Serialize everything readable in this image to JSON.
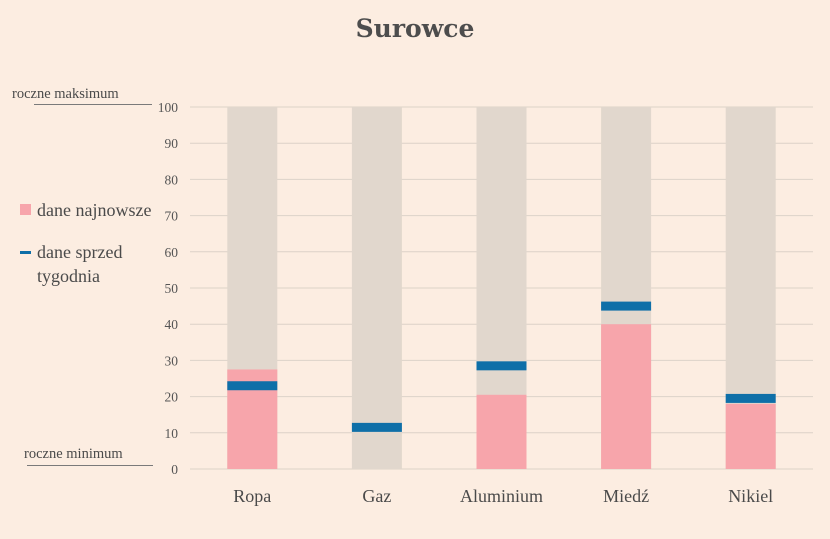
{
  "chart_data": {
    "type": "bar",
    "title": "Surowce",
    "categories": [
      "Ropa",
      "Gaz",
      "Aluminium",
      "Miedź",
      "Nikiel"
    ],
    "ylim": [
      0,
      100
    ],
    "yticks": [
      0,
      10,
      20,
      30,
      40,
      50,
      60,
      70,
      80,
      90,
      100
    ],
    "series": [
      {
        "name": "dane najnowsze",
        "values": [
          27.5,
          0,
          20.5,
          40,
          18
        ],
        "color": "#f7a5ab"
      },
      {
        "name": "dane sprzed tygodnia",
        "values": [
          23,
          11.5,
          28.5,
          45,
          19.5
        ],
        "color": "#0e6fa8"
      }
    ],
    "range_color": "#e1d7cd",
    "grid": true,
    "annotations": {
      "max_label": "roczne maksimum",
      "min_label": "roczne minimum"
    },
    "legend": {
      "position": "left",
      "latest": "dane najnowsze",
      "week_ago": "dane sprzed tygodnia"
    }
  }
}
